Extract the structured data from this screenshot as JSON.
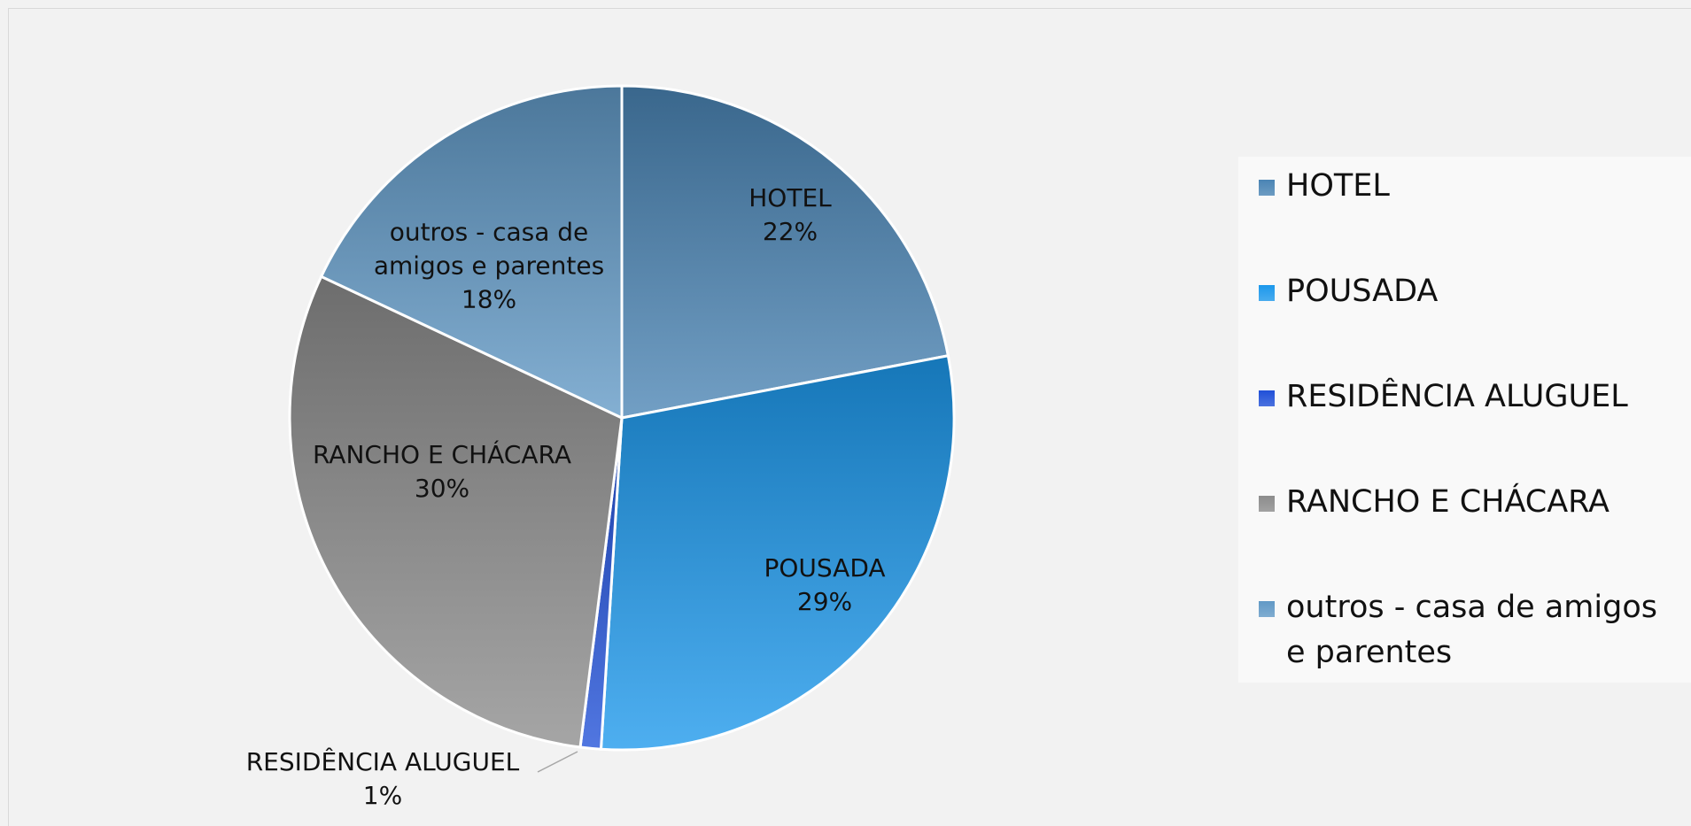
{
  "chart_data": {
    "type": "pie",
    "categories": [
      "HOTEL",
      "POUSADA",
      "RESIDÊNCIA ALUGUEL",
      "RANCHO E CHÁCARA",
      "outros - casa de amigos e parentes"
    ],
    "values": [
      22,
      29,
      1,
      30,
      18
    ],
    "value_labels": [
      "22%",
      "29%",
      "1%",
      "30%",
      "18%"
    ],
    "colors": [
      "#4a84b4",
      "#1c98ec",
      "#2050d8",
      "#8c8c8c",
      "#6199c6"
    ],
    "legend": "right"
  }
}
